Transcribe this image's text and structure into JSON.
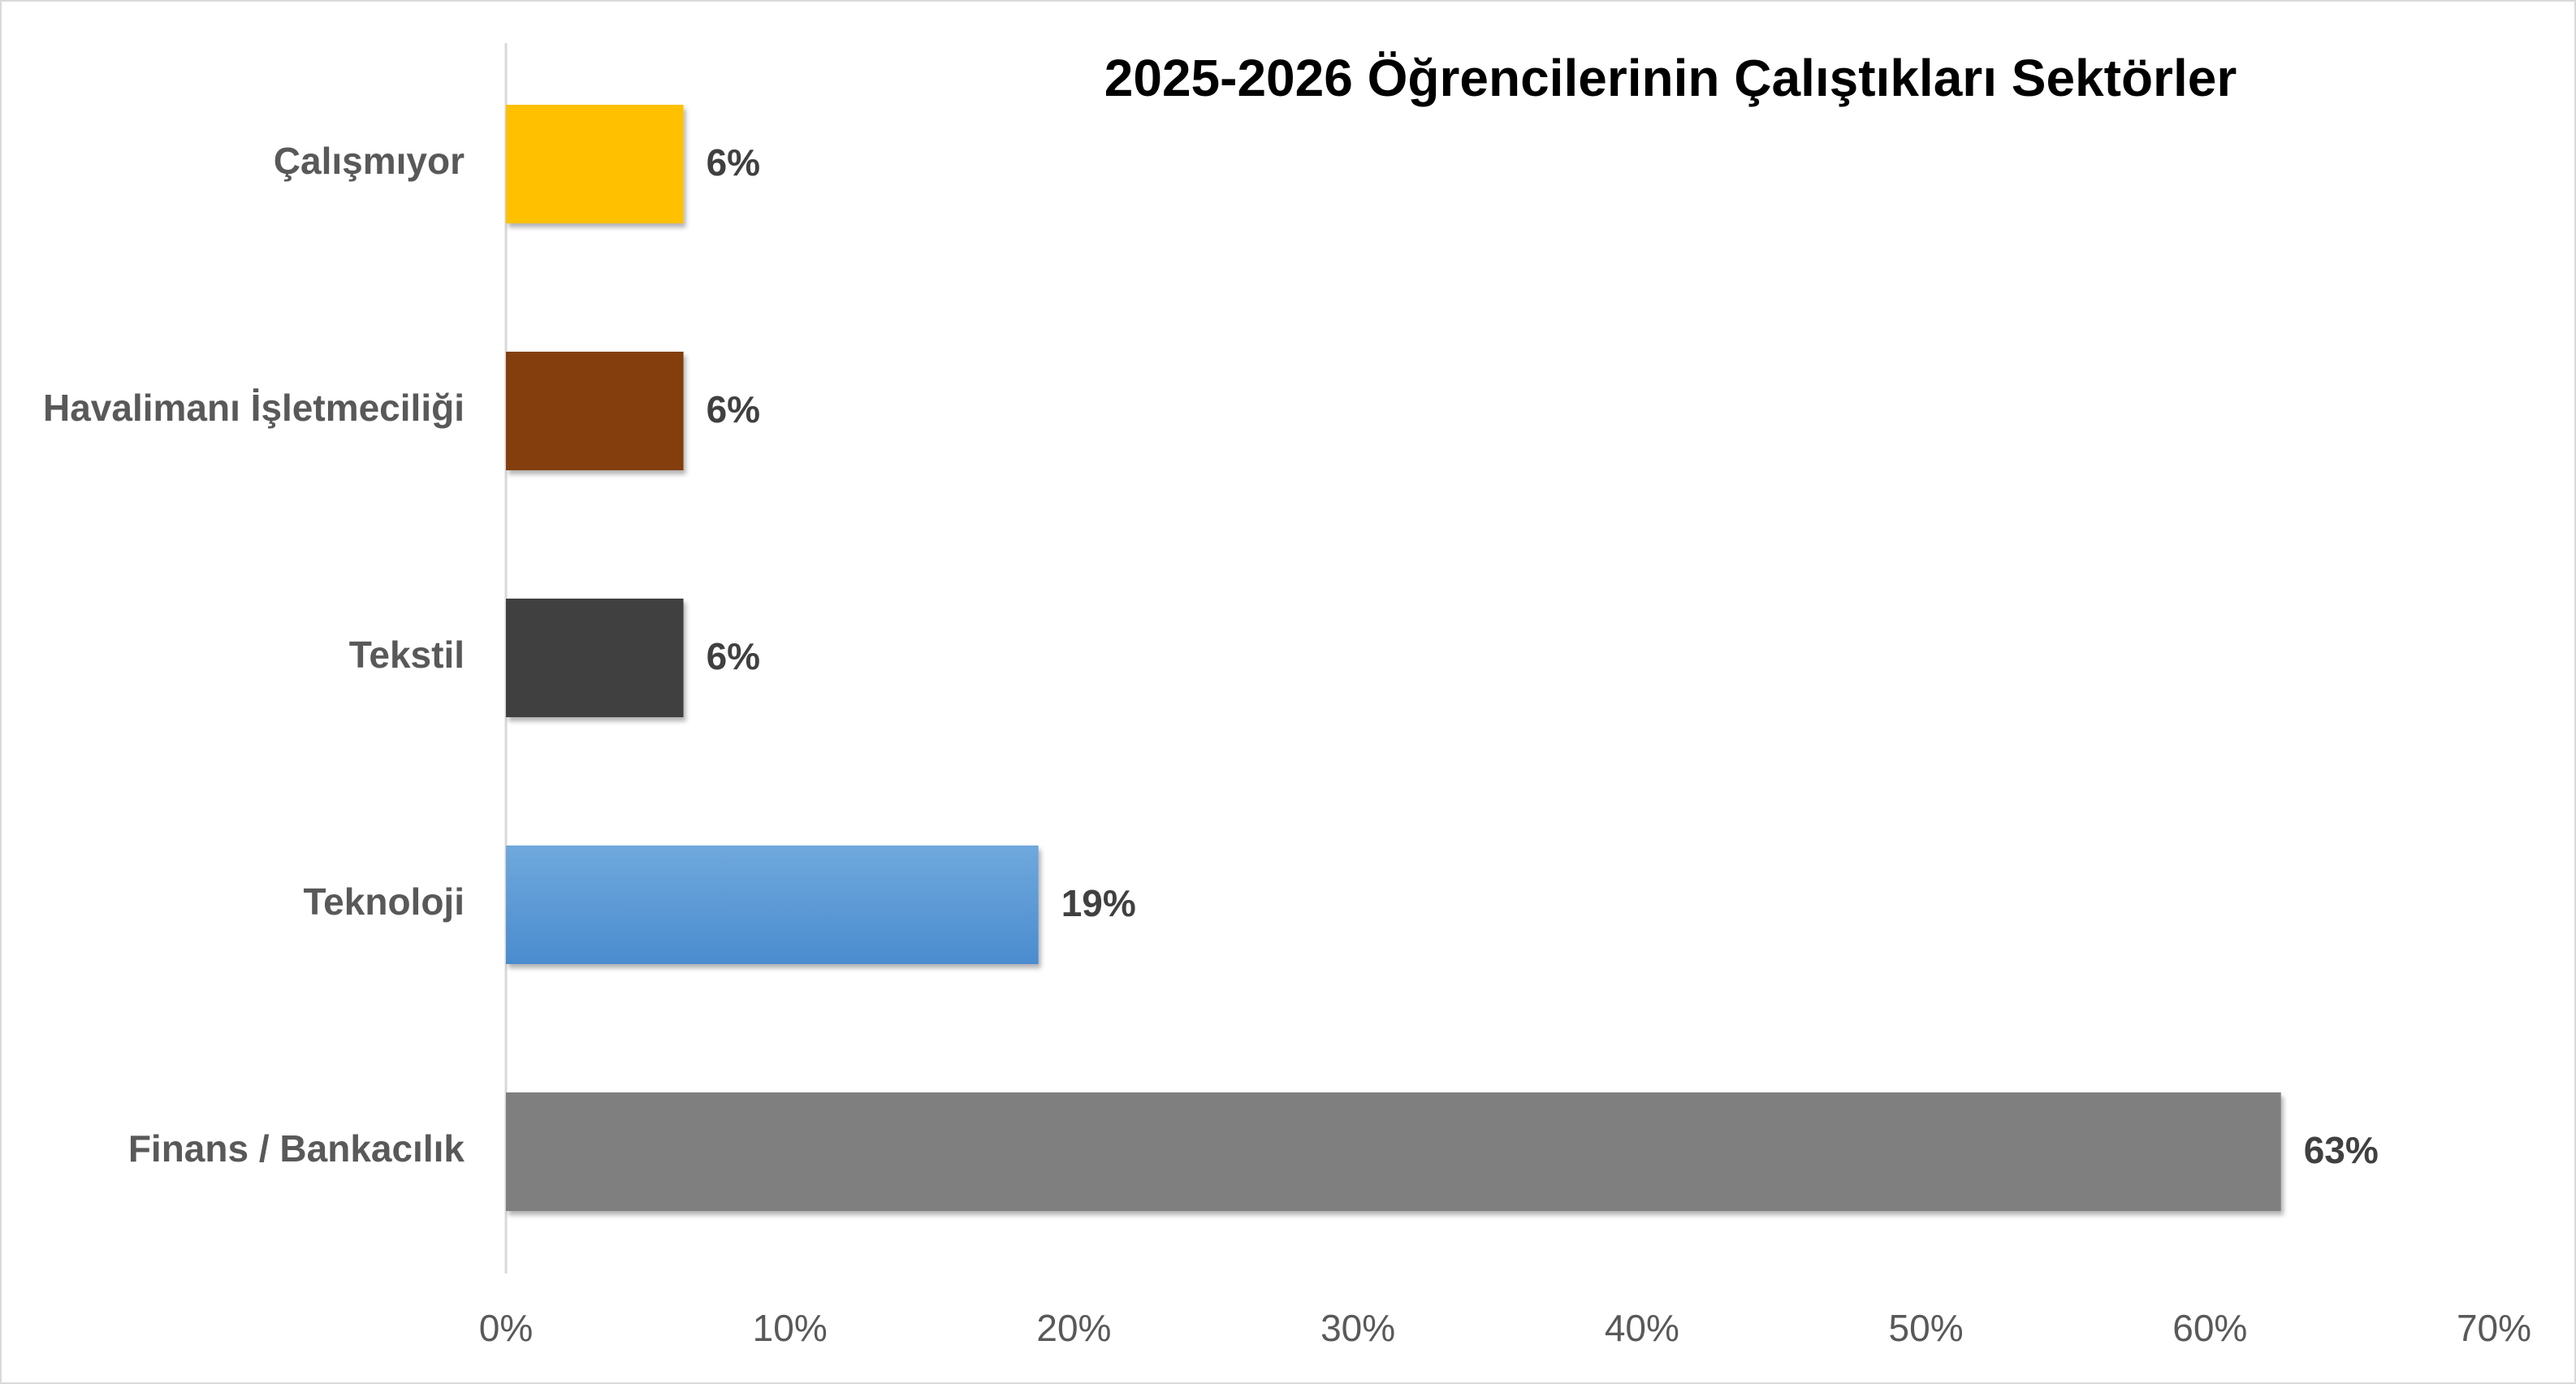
{
  "chart_data": {
    "type": "hbar",
    "title": "2025-2026 Öğrencilerinin Çalıştıkları Sektörler",
    "categories": [
      "Çalışmıyor",
      "Havalimanı İşletmeciliği",
      "Tekstil",
      "Teknoloji",
      "Finans / Bankacılık"
    ],
    "values": [
      6.25,
      6.25,
      6.25,
      18.75,
      62.5
    ],
    "value_labels": [
      "6%",
      "6%",
      "6%",
      "19%",
      "63%"
    ],
    "colors": [
      "#FFC000",
      "#843C0C",
      "#404040",
      "#5B9BD5",
      "#7F7F7F"
    ],
    "xlim": [
      0,
      70
    ],
    "xticks": [
      {
        "value": 0,
        "label": "0%"
      },
      {
        "value": 10,
        "label": "10%"
      },
      {
        "value": 20,
        "label": "20%"
      },
      {
        "value": 30,
        "label": "30%"
      },
      {
        "value": 40,
        "label": "40%"
      },
      {
        "value": 50,
        "label": "50%"
      },
      {
        "value": 60,
        "label": "60%"
      },
      {
        "value": 70,
        "label": "70%"
      }
    ],
    "grid": false
  }
}
